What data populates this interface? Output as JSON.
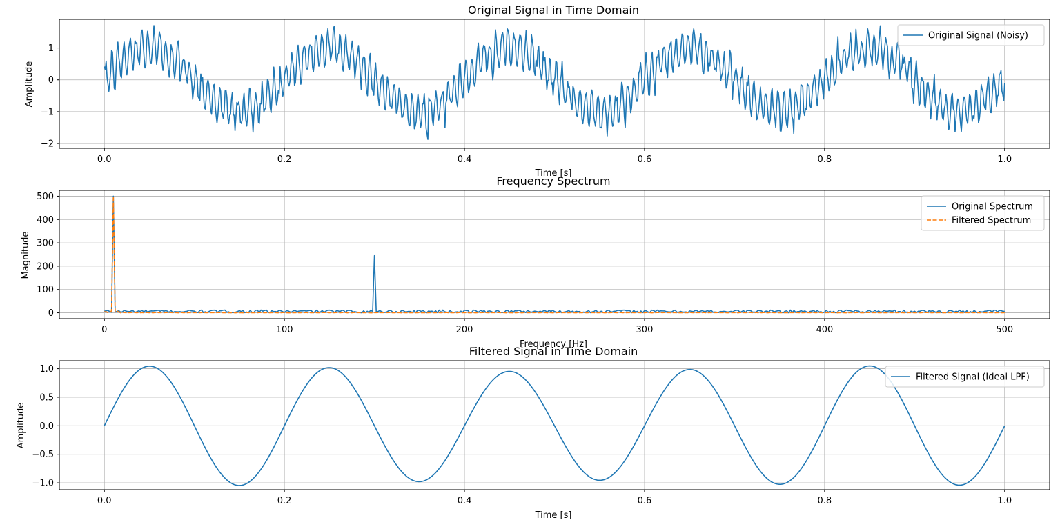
{
  "chart_data": [
    {
      "type": "line",
      "title": "Original Signal in Time Domain",
      "xlabel": "Time [s]",
      "ylabel": "Amplitude",
      "xlim": [
        -0.05,
        1.05
      ],
      "ylim": [
        -2.15,
        1.9
      ],
      "xticks": [
        0.0,
        0.2,
        0.4,
        0.6,
        0.8,
        1.0
      ],
      "xtick_labels": [
        "0.0",
        "0.2",
        "0.4",
        "0.6",
        "0.8",
        "1.0"
      ],
      "yticks": [
        -2,
        -1,
        0,
        1
      ],
      "ytick_labels": [
        "−2",
        "−1",
        "0",
        "1"
      ],
      "grid": true,
      "legend_position": "top-right",
      "series": [
        {
          "name": "Original Signal (Noisy)",
          "color": "#1f77b4",
          "style": "solid",
          "components": [
            {
              "amplitude": 1.0,
              "freq_hz": 5
            },
            {
              "amplitude": 0.5,
              "freq_hz": 150
            }
          ],
          "noise_std": 0.15,
          "t_start": 0,
          "t_end": 1,
          "num_samples": 1000
        }
      ]
    },
    {
      "type": "line",
      "title": "Frequency Spectrum",
      "xlabel": "Frequency [Hz]",
      "ylabel": "Magnitude",
      "xlim": [
        -25,
        525
      ],
      "ylim": [
        -25,
        525
      ],
      "xticks": [
        0,
        100,
        200,
        300,
        400,
        500
      ],
      "xtick_labels": [
        "0",
        "100",
        "200",
        "300",
        "400",
        "500"
      ],
      "yticks": [
        0,
        100,
        200,
        300,
        400,
        500
      ],
      "ytick_labels": [
        "0",
        "100",
        "200",
        "300",
        "400",
        "500"
      ],
      "grid": true,
      "legend_position": "top-right",
      "series": [
        {
          "name": "Original Spectrum",
          "color": "#1f77b4",
          "style": "solid",
          "peaks": [
            {
              "freq_hz": 5,
              "magnitude": 500
            },
            {
              "freq_hz": 150,
              "magnitude": 245
            }
          ],
          "noise_floor_max": 12
        },
        {
          "name": "Filtered Spectrum",
          "color": "#ff7f0e",
          "style": "dashed",
          "peaks": [
            {
              "freq_hz": 5,
              "magnitude": 500
            }
          ],
          "noise_floor_max": 8,
          "cutoff_hz": 10
        }
      ]
    },
    {
      "type": "line",
      "title": "Filtered Signal in Time Domain",
      "xlabel": "Time [s]",
      "ylabel": "Amplitude",
      "xlim": [
        -0.05,
        1.05
      ],
      "ylim": [
        -1.12,
        1.14
      ],
      "xticks": [
        0.0,
        0.2,
        0.4,
        0.6,
        0.8,
        1.0
      ],
      "xtick_labels": [
        "0.0",
        "0.2",
        "0.4",
        "0.6",
        "0.8",
        "1.0"
      ],
      "yticks": [
        -1.0,
        -0.5,
        0.0,
        0.5,
        1.0
      ],
      "ytick_labels": [
        "−1.0",
        "−0.5",
        "0.0",
        "0.5",
        "1.0"
      ],
      "grid": true,
      "legend_position": "top-right",
      "series": [
        {
          "name": "Filtered Signal (Ideal LPF)",
          "color": "#1f77b4",
          "style": "solid",
          "components": [
            {
              "amplitude": 1.0,
              "freq_hz": 5
            }
          ],
          "amplitude_wobble": 0.05,
          "t_start": 0,
          "t_end": 1,
          "num_samples": 500
        }
      ]
    }
  ]
}
